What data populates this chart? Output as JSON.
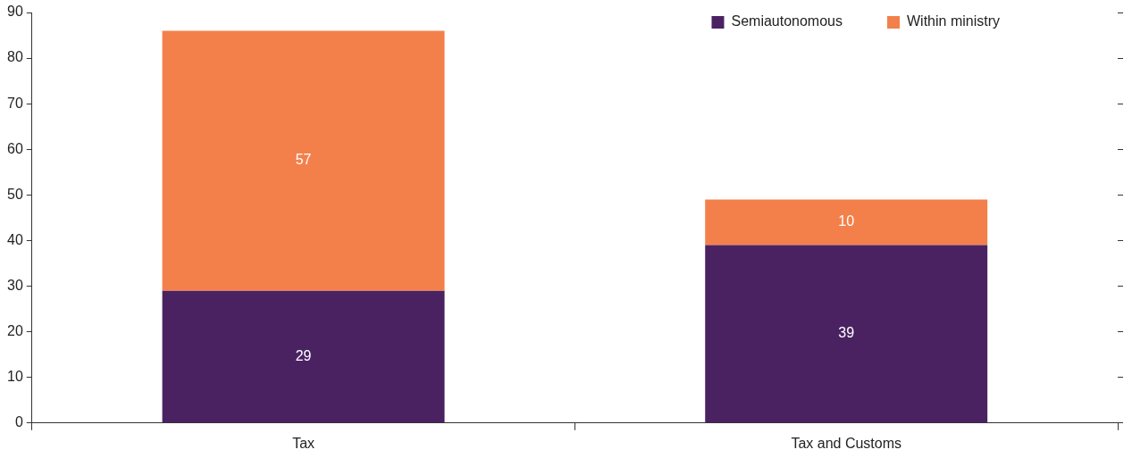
{
  "chart_data": {
    "type": "bar",
    "stacked": true,
    "categories": [
      "Tax",
      "Tax and Customs"
    ],
    "series": [
      {
        "name": "Semiautonomous",
        "color": "#4a2262",
        "values": [
          29,
          39
        ]
      },
      {
        "name": "Within ministry",
        "color": "#f3804a",
        "values": [
          57,
          10
        ]
      }
    ],
    "ylim": [
      0,
      90
    ],
    "yticks": [
      0,
      10,
      20,
      30,
      40,
      50,
      60,
      70,
      80,
      90
    ],
    "data_labels": true,
    "legend": "top right",
    "grid": false
  }
}
